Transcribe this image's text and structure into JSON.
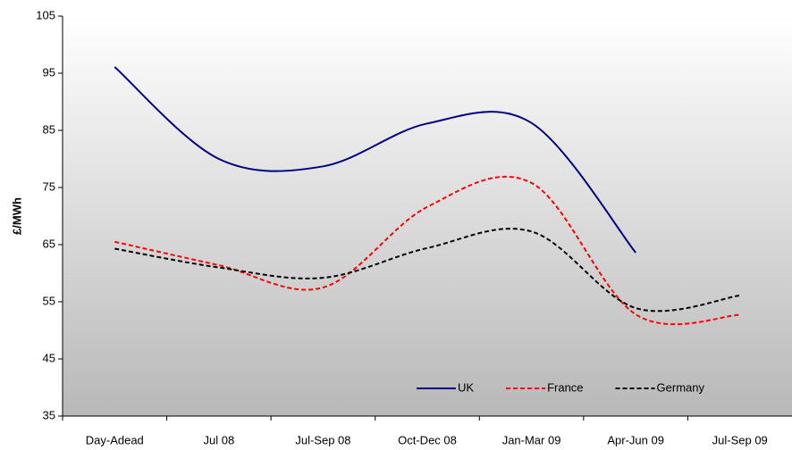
{
  "chart_data": {
    "type": "line",
    "y_label": "£/MWh",
    "categories": [
      "Day-Adead",
      "Jul 08",
      "Jul-Sep 08",
      "Oct-Dec 08",
      "Jan-Mar 09",
      "Apr-Jun 09",
      "Jul-Sep 09"
    ],
    "series": [
      {
        "name": "UK",
        "color": "#000080",
        "dash": "solid",
        "values": [
          96.1,
          80,
          78.7,
          86.2,
          86.3,
          63.6,
          null
        ]
      },
      {
        "name": "France",
        "color": "#ff0000",
        "dash": "dashed",
        "values": [
          65.5,
          61.4,
          57.5,
          71.6,
          75.8,
          52.8,
          52.7
        ]
      },
      {
        "name": "Germany",
        "color": "#000000",
        "dash": "dashed",
        "values": [
          64.3,
          61,
          59.2,
          64.4,
          67.3,
          53.9,
          56.1
        ]
      }
    ],
    "ylim": [
      35,
      105
    ],
    "yticks": [
      35,
      45,
      55,
      65,
      75,
      85,
      95,
      105
    ],
    "grid": false,
    "legend": "lower right",
    "smooth": true
  }
}
